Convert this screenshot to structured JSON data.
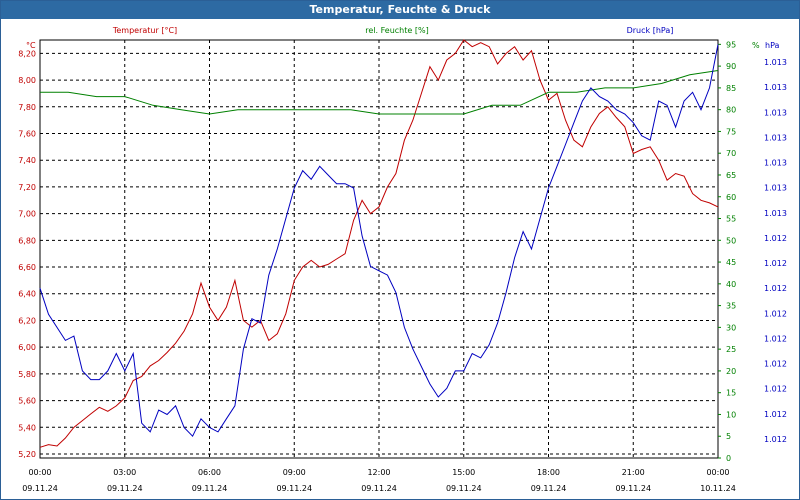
{
  "chart_data": {
    "type": "line",
    "title": "Temperatur, Feuchte & Druck",
    "legend": {
      "temperature": "Temperatur [°C]",
      "humidity": "rel. Feuchte [%]",
      "pressure": "Druck [hPa]"
    },
    "units": {
      "left": "°C",
      "right": "%",
      "far_right": "hPa"
    },
    "colors": {
      "temperature": "#c00000",
      "humidity": "#008000",
      "pressure": "#0000c0",
      "grid": "#000000",
      "title_bg": "#2d6aa3"
    },
    "x_range": [
      0,
      24
    ],
    "x_ticks": [
      {
        "time": "00:00",
        "date": "09.11.24"
      },
      {
        "time": "03:00",
        "date": "09.11.24"
      },
      {
        "time": "06:00",
        "date": "09.11.24"
      },
      {
        "time": "09:00",
        "date": "09.11.24"
      },
      {
        "time": "12:00",
        "date": "09.11.24"
      },
      {
        "time": "15:00",
        "date": "09.11.24"
      },
      {
        "time": "18:00",
        "date": "09.11.24"
      },
      {
        "time": "21:00",
        "date": "09.11.24"
      },
      {
        "time": "00:00",
        "date": "10.11.24"
      }
    ],
    "y_left_range": [
      5.17,
      8.3
    ],
    "y_left_ticks": [
      "5,20",
      "5,40",
      "5,60",
      "5,80",
      "6,00",
      "6,20",
      "6,40",
      "6,60",
      "6,80",
      "7,00",
      "7,20",
      "7,40",
      "7,60",
      "7,80",
      "8,00",
      "8,20"
    ],
    "y_right_range": [
      0,
      96
    ],
    "y_right_ticks": [
      "0",
      "5",
      "10",
      "15",
      "20",
      "25",
      "30",
      "35",
      "40",
      "45",
      "50",
      "55",
      "60",
      "65",
      "70",
      "75",
      "80",
      "85",
      "90",
      "95"
    ],
    "y_far_right_ticks": [
      "1.012",
      "1.012",
      "1.012",
      "1.012",
      "1.012",
      "1.012",
      "1.012",
      "1.012",
      "1.012",
      "1.013",
      "1.013",
      "1.013",
      "1.013",
      "1.013",
      "1.013",
      "1.013"
    ],
    "series": [
      {
        "name": "Temperatur [°C]",
        "axis": "left",
        "x": [
          0,
          0.3,
          0.6,
          0.9,
          1.2,
          1.5,
          1.8,
          2.1,
          2.4,
          2.7,
          3.0,
          3.3,
          3.6,
          3.9,
          4.2,
          4.5,
          4.8,
          5.1,
          5.4,
          5.7,
          6.0,
          6.3,
          6.6,
          6.9,
          7.2,
          7.5,
          7.8,
          8.1,
          8.4,
          8.7,
          9.0,
          9.3,
          9.6,
          9.9,
          10.2,
          10.5,
          10.8,
          11.1,
          11.4,
          11.7,
          12.0,
          12.3,
          12.6,
          12.9,
          13.2,
          13.5,
          13.8,
          14.1,
          14.4,
          14.7,
          15.0,
          15.3,
          15.6,
          15.9,
          16.2,
          16.5,
          16.8,
          17.1,
          17.4,
          17.7,
          18.0,
          18.3,
          18.6,
          18.9,
          19.2,
          19.5,
          19.8,
          20.1,
          20.4,
          20.7,
          21.0,
          21.3,
          21.6,
          21.9,
          22.2,
          22.5,
          22.8,
          23.1,
          23.4,
          23.7,
          24.0
        ],
        "values": [
          5.25,
          5.27,
          5.26,
          5.32,
          5.4,
          5.45,
          5.5,
          5.55,
          5.52,
          5.56,
          5.62,
          5.75,
          5.78,
          5.86,
          5.9,
          5.96,
          6.03,
          6.12,
          6.25,
          6.48,
          6.3,
          6.2,
          6.3,
          6.5,
          6.2,
          6.15,
          6.2,
          6.05,
          6.1,
          6.25,
          6.5,
          6.6,
          6.65,
          6.6,
          6.62,
          6.66,
          6.7,
          6.95,
          7.1,
          7.0,
          7.05,
          7.2,
          7.3,
          7.55,
          7.7,
          7.9,
          8.1,
          8.0,
          8.15,
          8.2,
          8.3,
          8.25,
          8.28,
          8.25,
          8.12,
          8.2,
          8.25,
          8.15,
          8.22,
          8.0,
          7.85,
          7.9,
          7.7,
          7.55,
          7.5,
          7.65,
          7.75,
          7.8,
          7.72,
          7.65,
          7.45,
          7.48,
          7.5,
          7.4,
          7.25,
          7.3,
          7.28,
          7.15,
          7.1,
          7.08,
          7.05
        ]
      },
      {
        "name": "rel. Feuchte [%]",
        "axis": "right",
        "x": [
          0,
          1,
          2,
          3,
          4,
          5,
          6,
          7,
          8,
          9,
          10,
          11,
          12,
          13,
          14,
          15,
          16,
          17,
          18,
          19,
          20,
          21,
          22,
          23,
          24
        ],
        "values": [
          84,
          84,
          83,
          83,
          81,
          80,
          79,
          80,
          80,
          80,
          80,
          80,
          79,
          79,
          79,
          79,
          81,
          81,
          84,
          84,
          85,
          85,
          86,
          88,
          89
        ]
      },
      {
        "name": "Druck [hPa]",
        "axis": "right",
        "x": [
          0,
          0.3,
          0.6,
          0.9,
          1.2,
          1.5,
          1.8,
          2.1,
          2.4,
          2.7,
          3.0,
          3.3,
          3.6,
          3.9,
          4.2,
          4.5,
          4.8,
          5.1,
          5.4,
          5.7,
          6.0,
          6.3,
          6.6,
          6.9,
          7.2,
          7.5,
          7.8,
          8.1,
          8.4,
          8.7,
          9.0,
          9.3,
          9.6,
          9.9,
          10.2,
          10.5,
          10.8,
          11.1,
          11.4,
          11.7,
          12.0,
          12.3,
          12.6,
          12.9,
          13.2,
          13.5,
          13.8,
          14.1,
          14.4,
          14.7,
          15.0,
          15.3,
          15.6,
          15.9,
          16.2,
          16.5,
          16.8,
          17.1,
          17.4,
          17.7,
          18.0,
          18.3,
          18.6,
          18.9,
          19.2,
          19.5,
          19.8,
          20.1,
          20.4,
          20.7,
          21.0,
          21.3,
          21.6,
          21.9,
          22.2,
          22.5,
          22.8,
          23.1,
          23.4,
          23.7,
          24.0
        ],
        "values": [
          39,
          33,
          30,
          27,
          28,
          20,
          18,
          18,
          20,
          24,
          20,
          24,
          8,
          6,
          11,
          10,
          12,
          7,
          5,
          9,
          7,
          6,
          9,
          12,
          25,
          32,
          31,
          42,
          48,
          55,
          62,
          66,
          64,
          67,
          65,
          63,
          63,
          62,
          51,
          44,
          43,
          42,
          38,
          30,
          25,
          21,
          17,
          14,
          16,
          20,
          20,
          24,
          23,
          26,
          31,
          38,
          46,
          52,
          48,
          55,
          62,
          67,
          72,
          77,
          82,
          85,
          83,
          82,
          80,
          79,
          77,
          74,
          73,
          82,
          81,
          76,
          82,
          84,
          80,
          85,
          95
        ]
      }
    ]
  }
}
